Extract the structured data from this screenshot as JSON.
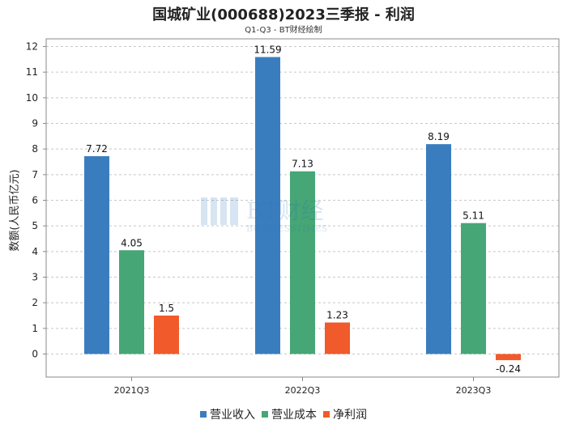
{
  "chart_data": {
    "type": "bar",
    "title": "国城矿业(000688)2023三季报 - 利润",
    "subtitle": "Q1-Q3 - BT财经绘制",
    "ylabel": "数额(人民币亿元)",
    "xlabel": "",
    "categories": [
      "2021Q3",
      "2022Q3",
      "2023Q3"
    ],
    "ylim": [
      -0.9,
      12.3
    ],
    "yticks": [
      0,
      1,
      2,
      3,
      4,
      5,
      6,
      7,
      8,
      9,
      10,
      11,
      12
    ],
    "grid": true,
    "legend_position": "bottom",
    "series": [
      {
        "name": "营业收入",
        "color": "#3a7dbf",
        "values": [
          7.72,
          11.59,
          8.19
        ]
      },
      {
        "name": "营业成本",
        "color": "#46a676",
        "values": [
          4.05,
          7.13,
          5.11
        ]
      },
      {
        "name": "净利润",
        "color": "#f15a2b",
        "values": [
          1.5,
          1.23,
          -0.24
        ]
      }
    ]
  },
  "watermark": {
    "brand": "BT财经",
    "tagline": "BUSINESSTIMES"
  }
}
